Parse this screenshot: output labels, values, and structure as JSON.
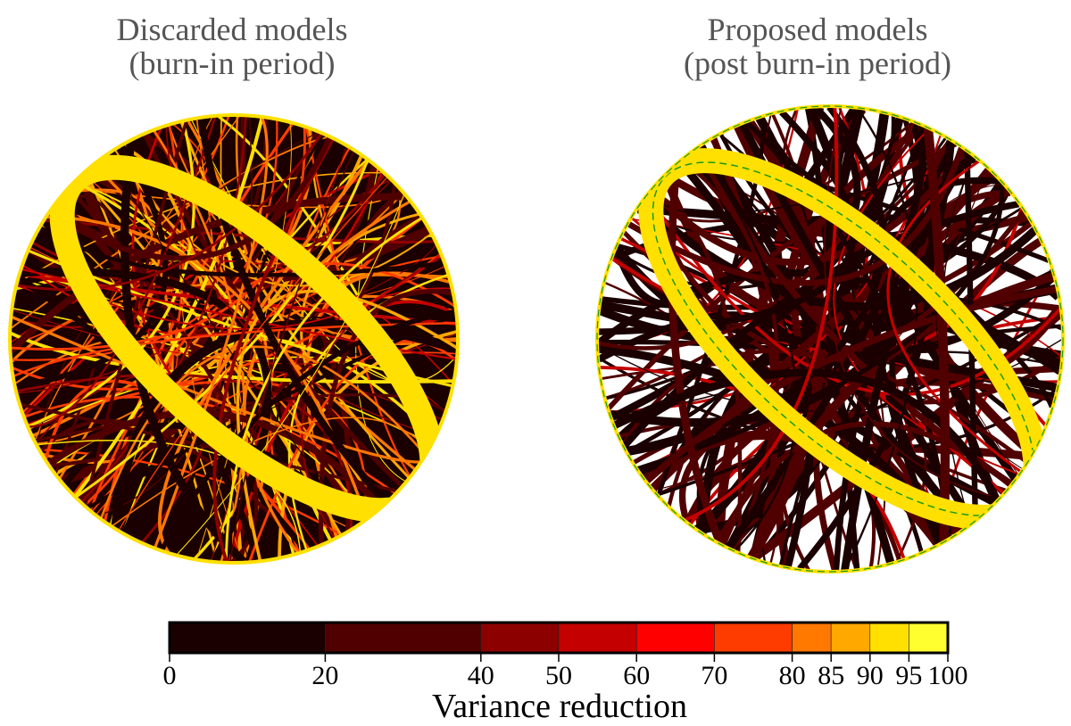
{
  "chart_data": {
    "type": "heatmap",
    "panels": [
      {
        "title_line1": "Discarded models",
        "title_line2": "(burn-in period)",
        "background": "#1a0000"
      },
      {
        "title_line1": "Proposed models",
        "title_line2": "(post burn-in period)",
        "background": "#ffffff"
      }
    ],
    "colorbar": {
      "label": "Variance reduction",
      "range": [
        0,
        100
      ],
      "ticks": [
        "0",
        "20",
        "40",
        "50",
        "60",
        "70",
        "80",
        "85",
        "90",
        "95",
        "100"
      ],
      "bins": [
        {
          "from": 0,
          "to": 20,
          "color": "#1a0000"
        },
        {
          "from": 20,
          "to": 40,
          "color": "#500000"
        },
        {
          "from": 40,
          "to": 50,
          "color": "#8c0000"
        },
        {
          "from": 50,
          "to": 60,
          "color": "#c40000"
        },
        {
          "from": 60,
          "to": 70,
          "color": "#ff0000"
        },
        {
          "from": 70,
          "to": 80,
          "color": "#ff3c00"
        },
        {
          "from": 80,
          "to": 85,
          "color": "#ff7800"
        },
        {
          "from": 85,
          "to": 90,
          "color": "#ffa800"
        },
        {
          "from": 90,
          "to": 95,
          "color": "#ffe000"
        },
        {
          "from": 95,
          "to": 100,
          "color": "#ffff30"
        }
      ]
    },
    "true_model_line_color": "#1a9a1a"
  }
}
